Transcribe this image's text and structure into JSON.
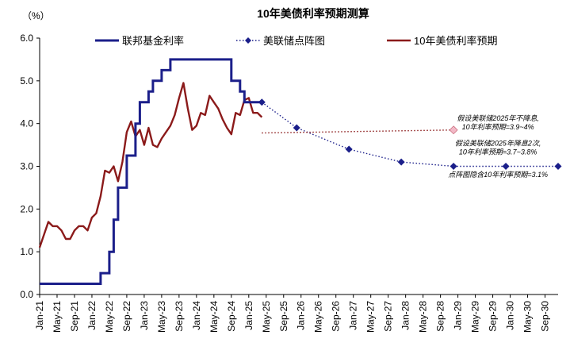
{
  "chart_data": {
    "type": "line",
    "title": "10年美债利率预期测算",
    "y_unit": "（%）",
    "ylim": [
      0,
      6
    ],
    "y_ticks": [
      "0.0",
      "1.0",
      "2.0",
      "3.0",
      "4.0",
      "5.0",
      "6.0"
    ],
    "x_range": [
      "2021-01",
      "2030-12"
    ],
    "x_tick_labels": [
      "Jan-21",
      "May-21",
      "Sep-21",
      "Jan-22",
      "May-22",
      "Sep-22",
      "Jan-23",
      "May-23",
      "Sep-23",
      "Jan-24",
      "May-24",
      "Sep-24",
      "Jan-25",
      "May-25",
      "Sep-25",
      "Jan-26",
      "May-26",
      "Sep-26",
      "Jan-27",
      "May-27",
      "Sep-27",
      "Jan-28",
      "May-28",
      "Sep-28",
      "Jan-29",
      "May-29",
      "Sep-29",
      "Jan-30",
      "May-30",
      "Sep-30"
    ],
    "grid": false,
    "legend_position": "top",
    "series": [
      {
        "name": "联邦基金利率",
        "color": "#1b1f8a",
        "style": "step",
        "points": [
          [
            "2021-01",
            0.25
          ],
          [
            "2022-03",
            0.25
          ],
          [
            "2022-03",
            0.5
          ],
          [
            "2022-05",
            0.5
          ],
          [
            "2022-05",
            1.0
          ],
          [
            "2022-06",
            1.0
          ],
          [
            "2022-06",
            1.75
          ],
          [
            "2022-07",
            1.75
          ],
          [
            "2022-07",
            2.5
          ],
          [
            "2022-09",
            2.5
          ],
          [
            "2022-09",
            3.25
          ],
          [
            "2022-11",
            3.25
          ],
          [
            "2022-11",
            4.0
          ],
          [
            "2022-12",
            4.0
          ],
          [
            "2022-12",
            4.5
          ],
          [
            "2023-02",
            4.5
          ],
          [
            "2023-02",
            4.75
          ],
          [
            "2023-03",
            4.75
          ],
          [
            "2023-03",
            5.0
          ],
          [
            "2023-05",
            5.0
          ],
          [
            "2023-05",
            5.25
          ],
          [
            "2023-07",
            5.25
          ],
          [
            "2023-07",
            5.5
          ],
          [
            "2024-09",
            5.5
          ],
          [
            "2024-09",
            5.0
          ],
          [
            "2024-11",
            5.0
          ],
          [
            "2024-11",
            4.75
          ],
          [
            "2024-12",
            4.75
          ],
          [
            "2024-12",
            4.5
          ],
          [
            "2025-04",
            4.5
          ]
        ]
      },
      {
        "name": "美联储点阵图",
        "color": "#1b1f8a",
        "style": "dotted-with-diamonds",
        "points": [
          [
            "2025-04",
            4.5
          ],
          [
            "2025-12",
            3.9
          ],
          [
            "2026-12",
            3.4
          ],
          [
            "2027-12",
            3.1
          ],
          [
            "2028-12",
            3.0
          ],
          [
            "2029-12",
            3.0
          ],
          [
            "2030-12",
            3.0
          ]
        ]
      },
      {
        "name": "10年美债利率预期",
        "color": "#8b1a1a",
        "style": "line",
        "points": [
          [
            "2021-01",
            1.1
          ],
          [
            "2021-02",
            1.4
          ],
          [
            "2021-03",
            1.7
          ],
          [
            "2021-04",
            1.6
          ],
          [
            "2021-05",
            1.6
          ],
          [
            "2021-06",
            1.5
          ],
          [
            "2021-07",
            1.3
          ],
          [
            "2021-08",
            1.3
          ],
          [
            "2021-09",
            1.5
          ],
          [
            "2021-10",
            1.6
          ],
          [
            "2021-11",
            1.6
          ],
          [
            "2021-12",
            1.5
          ],
          [
            "2022-01",
            1.8
          ],
          [
            "2022-02",
            1.9
          ],
          [
            "2022-03",
            2.3
          ],
          [
            "2022-04",
            2.9
          ],
          [
            "2022-05",
            2.85
          ],
          [
            "2022-06",
            3.0
          ],
          [
            "2022-07",
            2.65
          ],
          [
            "2022-08",
            3.1
          ],
          [
            "2022-09",
            3.8
          ],
          [
            "2022-10",
            4.05
          ],
          [
            "2022-11",
            3.7
          ],
          [
            "2022-12",
            3.85
          ],
          [
            "2023-01",
            3.5
          ],
          [
            "2023-02",
            3.9
          ],
          [
            "2023-03",
            3.5
          ],
          [
            "2023-04",
            3.45
          ],
          [
            "2023-05",
            3.65
          ],
          [
            "2023-06",
            3.8
          ],
          [
            "2023-07",
            3.95
          ],
          [
            "2023-08",
            4.2
          ],
          [
            "2023-09",
            4.6
          ],
          [
            "2023-10",
            4.95
          ],
          [
            "2023-11",
            4.35
          ],
          [
            "2023-12",
            3.85
          ],
          [
            "2024-01",
            3.95
          ],
          [
            "2024-02",
            4.25
          ],
          [
            "2024-03",
            4.2
          ],
          [
            "2024-04",
            4.65
          ],
          [
            "2024-05",
            4.5
          ],
          [
            "2024-06",
            4.35
          ],
          [
            "2024-07",
            4.1
          ],
          [
            "2024-08",
            3.9
          ],
          [
            "2024-09",
            3.75
          ],
          [
            "2024-10",
            4.25
          ],
          [
            "2024-11",
            4.2
          ],
          [
            "2024-12",
            4.55
          ],
          [
            "2025-01",
            4.6
          ],
          [
            "2025-02",
            4.25
          ],
          [
            "2025-03",
            4.25
          ],
          [
            "2025-04",
            4.15
          ]
        ]
      }
    ],
    "reference_lines": [
      {
        "name": "10年美债利率预期（不降息）",
        "color": "#8b1a1a",
        "style": "dotted",
        "from": [
          "2025-04",
          3.78
        ],
        "to": [
          "2028-12",
          3.85
        ]
      }
    ],
    "markers": [
      {
        "x": "2028-12",
        "y": 3.85,
        "shape": "diamond",
        "color": "#f2b8c6",
        "edge": "#c05a6c"
      }
    ],
    "annotations": [
      {
        "lines": [
          "假设美联储2025年不降息,",
          "10年利率预期=3.9~4%"
        ],
        "anchor": [
          "2028-12",
          4.07
        ]
      },
      {
        "lines": [
          "假设美联储2025年降息2次,",
          "10年利率预期=3.7~3.8%"
        ],
        "anchor": [
          "2028-12",
          3.48
        ]
      },
      {
        "lines": [
          "点阵图隐含10年利率预期=3.1%"
        ],
        "anchor": [
          "2028-12",
          2.75
        ]
      }
    ]
  }
}
